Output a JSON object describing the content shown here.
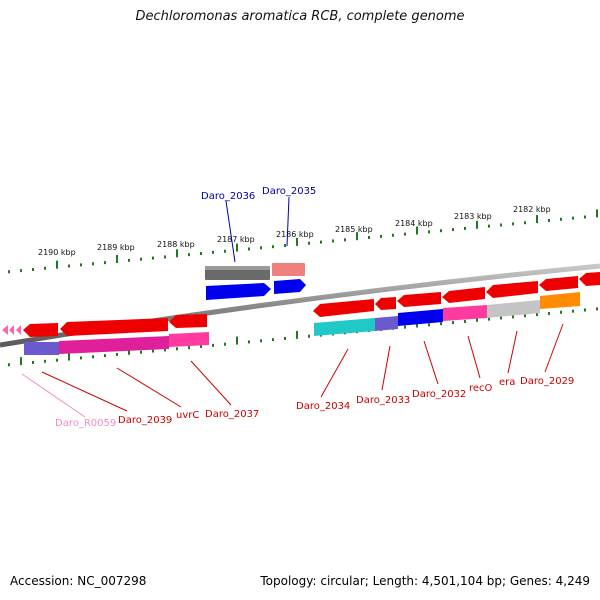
{
  "title": "Dechloromonas aromatica RCB, complete genome",
  "footer": {
    "accession": "Accession: NC_007298",
    "summary": "Topology: circular; Length: 4,501,104 bp; Genes: 4,249"
  },
  "colors": {
    "backbone": "#8a8a8a",
    "tick": "#1f7a1f",
    "label_red": "#cc0000",
    "label_blue": "#0000aa",
    "label_pink": "#f08cc8"
  },
  "scale": {
    "top_ticks": [
      "2190 kbp",
      "2189 kbp",
      "2188 kbp",
      "2187 kbp",
      "2186 kbp",
      "2185 kbp",
      "2184 kbp",
      "2183 kbp",
      "2182 kbp"
    ]
  },
  "genes": [
    {
      "label": "Daro_2036",
      "color": "blue"
    },
    {
      "label": "Daro_2035",
      "color": "blue"
    },
    {
      "label": "Daro_R0059",
      "color": "pink"
    },
    {
      "label": "Daro_2039",
      "color": "red"
    },
    {
      "label": "uvrC",
      "color": "red"
    },
    {
      "label": "Daro_2037",
      "color": "red"
    },
    {
      "label": "Daro_2034",
      "color": "red"
    },
    {
      "label": "Daro_2033",
      "color": "red"
    },
    {
      "label": "Daro_2032",
      "color": "red"
    },
    {
      "label": "recO",
      "color": "red"
    },
    {
      "label": "era",
      "color": "red"
    },
    {
      "label": "Daro_2029",
      "color": "red"
    }
  ]
}
